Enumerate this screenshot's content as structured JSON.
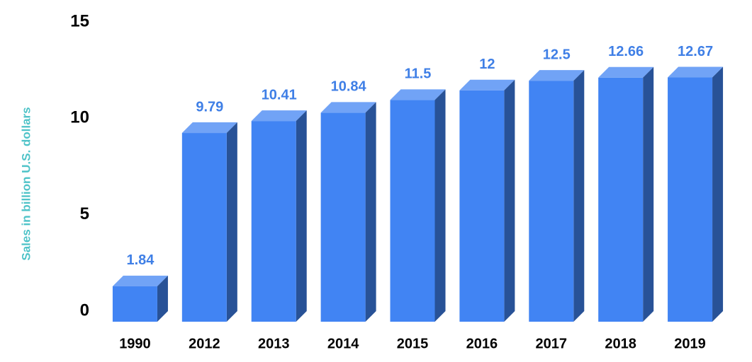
{
  "chart_data": {
    "type": "bar3d",
    "y_axis_label": "Sales in billion U.S. dollars",
    "categories": [
      "1990",
      "2012",
      "2013",
      "2014",
      "2015",
      "2016",
      "2017",
      "2018",
      "2019"
    ],
    "values": [
      1.84,
      9.79,
      10.41,
      10.84,
      11.5,
      12,
      12.5,
      12.66,
      12.67
    ],
    "color": "#4184f3",
    "ylim": [
      0,
      15
    ],
    "yticks": [
      0,
      5,
      10,
      15
    ],
    "grid": false,
    "value_labels_shown": true
  }
}
